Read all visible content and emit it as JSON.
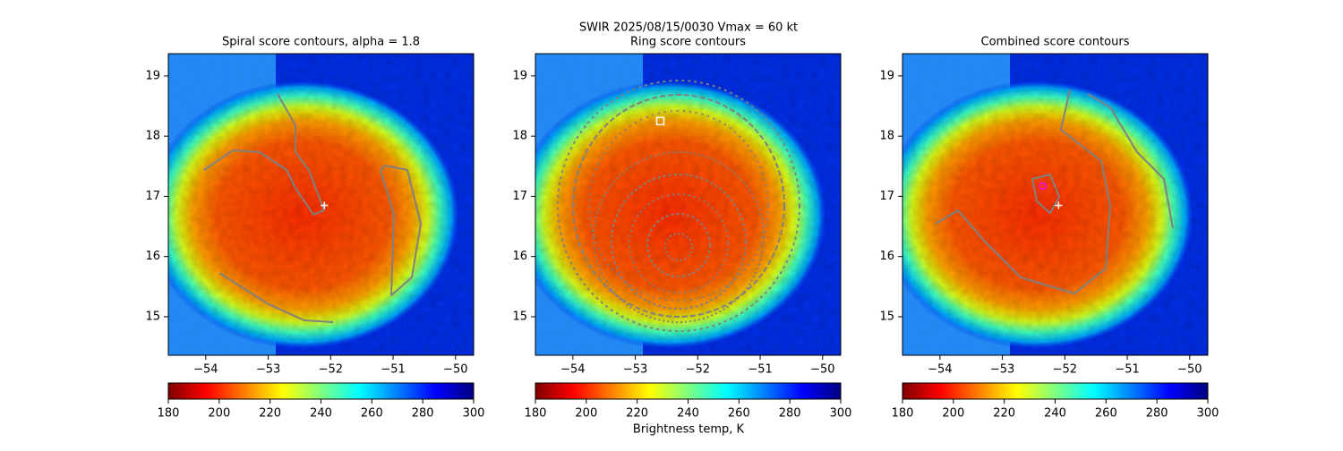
{
  "title": "SWIR  2025/08/15/0030    Vmax = 60 kt",
  "colorbar_label": "Brightness temp, K",
  "chart_data": [
    {
      "type": "heatmap",
      "title": "Spiral score contours, alpha =  1.8",
      "colormap": "jet_r",
      "xlim": [
        -54.6,
        -49.71
      ],
      "ylim": [
        14.36,
        19.37
      ],
      "xticks": [
        {
          "value": -54,
          "label": "−54"
        },
        {
          "value": -53,
          "label": "−53"
        },
        {
          "value": -52,
          "label": "−52"
        },
        {
          "value": -51,
          "label": "−51"
        },
        {
          "value": -50,
          "label": "−50"
        }
      ],
      "yticks": [
        15,
        16,
        17,
        18,
        19
      ],
      "clim": [
        180,
        300
      ],
      "cticks": [
        180,
        200,
        220,
        240,
        260,
        280,
        300
      ],
      "markers": [
        {
          "x": -52.1,
          "y": 16.85,
          "symbol": "plus",
          "color": "#ffffff"
        }
      ]
    },
    {
      "type": "heatmap",
      "title": "Ring score contours",
      "colormap": "jet_r",
      "xlim": [
        -54.6,
        -49.71
      ],
      "ylim": [
        14.36,
        19.37
      ],
      "xticks": [
        {
          "value": -54,
          "label": "−54"
        },
        {
          "value": -53,
          "label": "−53"
        },
        {
          "value": -52,
          "label": "−52"
        },
        {
          "value": -51,
          "label": "−51"
        },
        {
          "value": -50,
          "label": "−50"
        }
      ],
      "yticks": [
        15,
        16,
        17,
        18,
        19
      ],
      "clim": [
        180,
        300
      ],
      "cticks": [
        180,
        200,
        220,
        240,
        260,
        280,
        300
      ],
      "markers": [
        {
          "x": -52.6,
          "y": 18.25,
          "symbol": "square",
          "color": "#ffffff"
        }
      ]
    },
    {
      "type": "heatmap",
      "title": "Combined score contours",
      "colormap": "jet_r",
      "xlim": [
        -54.6,
        -49.71
      ],
      "ylim": [
        14.36,
        19.37
      ],
      "xticks": [
        {
          "value": -54,
          "label": "−54"
        },
        {
          "value": -53,
          "label": "−53"
        },
        {
          "value": -52,
          "label": "−52"
        },
        {
          "value": -51,
          "label": "−51"
        },
        {
          "value": -50,
          "label": "−50"
        }
      ],
      "yticks": [
        15,
        16,
        17,
        18,
        19
      ],
      "clim": [
        180,
        300
      ],
      "cticks": [
        180,
        200,
        220,
        240,
        260,
        280,
        300
      ],
      "markers": [
        {
          "x": -52.1,
          "y": 16.85,
          "symbol": "plus",
          "color": "#ffffff"
        },
        {
          "x": -52.35,
          "y": 17.17,
          "symbol": "circle",
          "color": "#ff00ff"
        }
      ]
    }
  ]
}
